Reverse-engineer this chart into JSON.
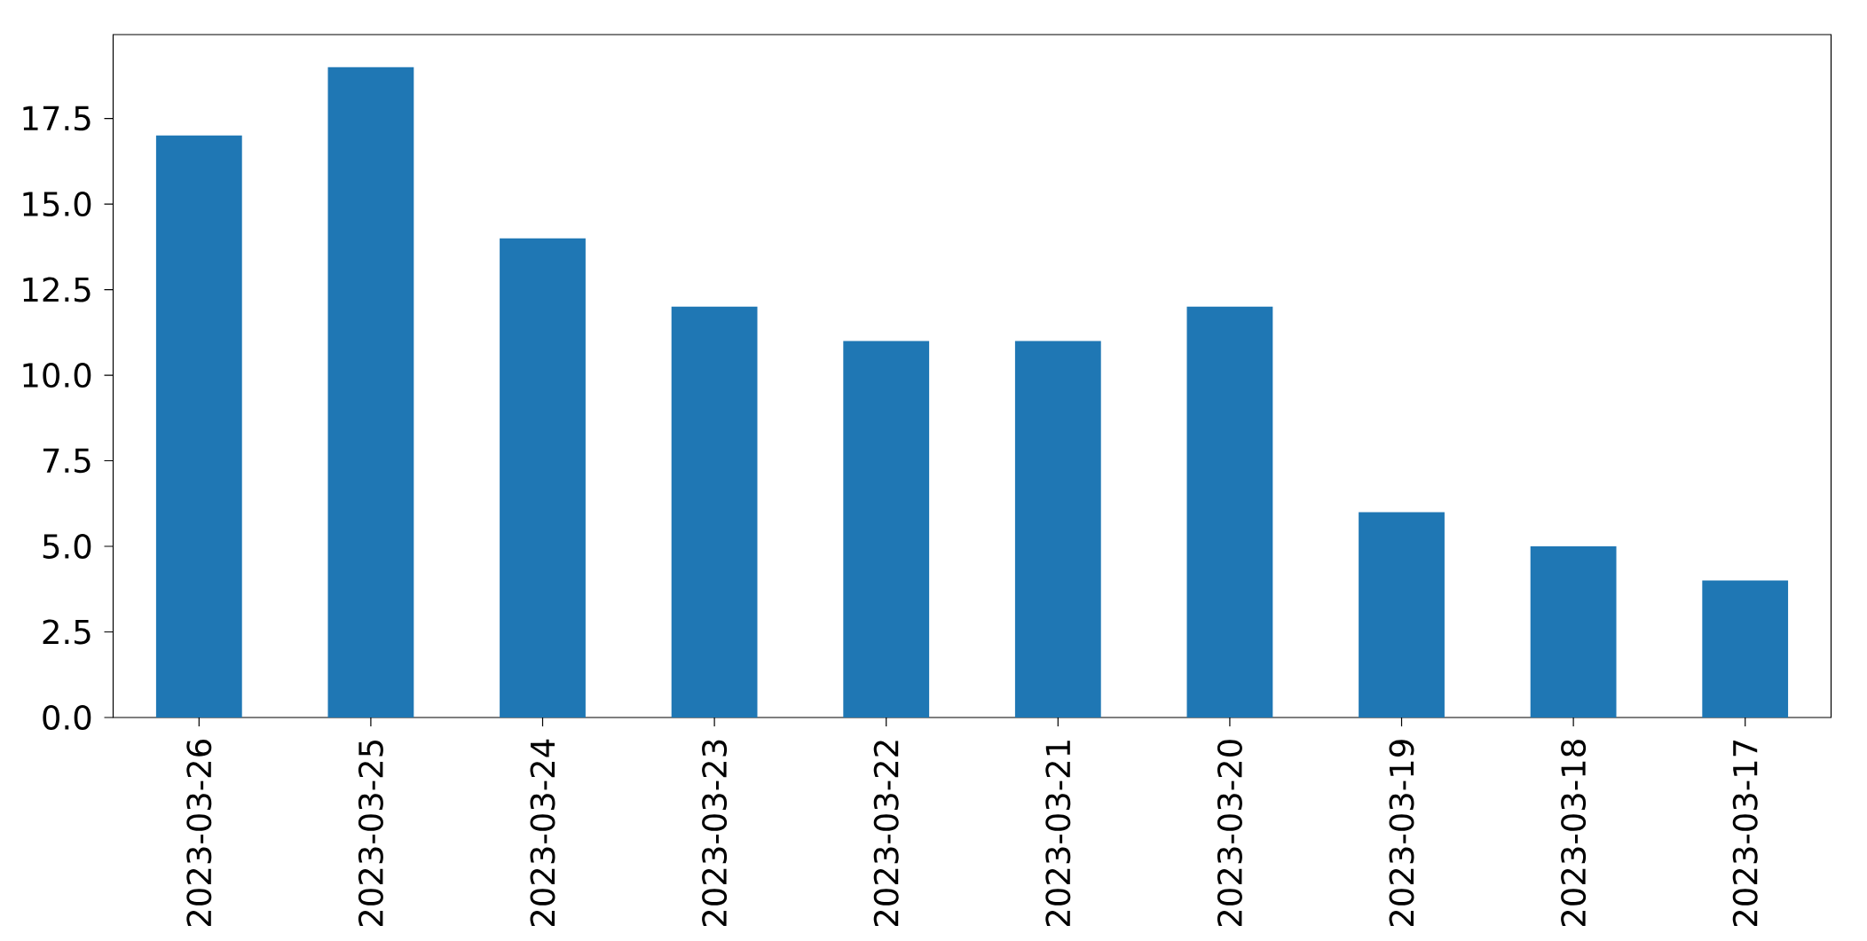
{
  "chart_data": {
    "type": "bar",
    "categories": [
      "2023-03-26",
      "2023-03-25",
      "2023-03-24",
      "2023-03-23",
      "2023-03-22",
      "2023-03-21",
      "2023-03-20",
      "2023-03-19",
      "2023-03-18",
      "2023-03-17"
    ],
    "values": [
      17,
      19,
      14,
      12,
      11,
      11,
      12,
      6,
      5,
      4
    ],
    "color": "#1f77b4",
    "ylim": [
      0,
      19.95
    ],
    "yticks": [
      {
        "value": 0,
        "label": "0.0"
      },
      {
        "value": 2.5,
        "label": "2.5"
      },
      {
        "value": 5,
        "label": "5.0"
      },
      {
        "value": 7.5,
        "label": "7.5"
      },
      {
        "value": 10,
        "label": "10.0"
      },
      {
        "value": 12.5,
        "label": "12.5"
      },
      {
        "value": 15,
        "label": "15.0"
      },
      {
        "value": 17.5,
        "label": "17.5"
      }
    ],
    "grid": false,
    "legend": false
  }
}
